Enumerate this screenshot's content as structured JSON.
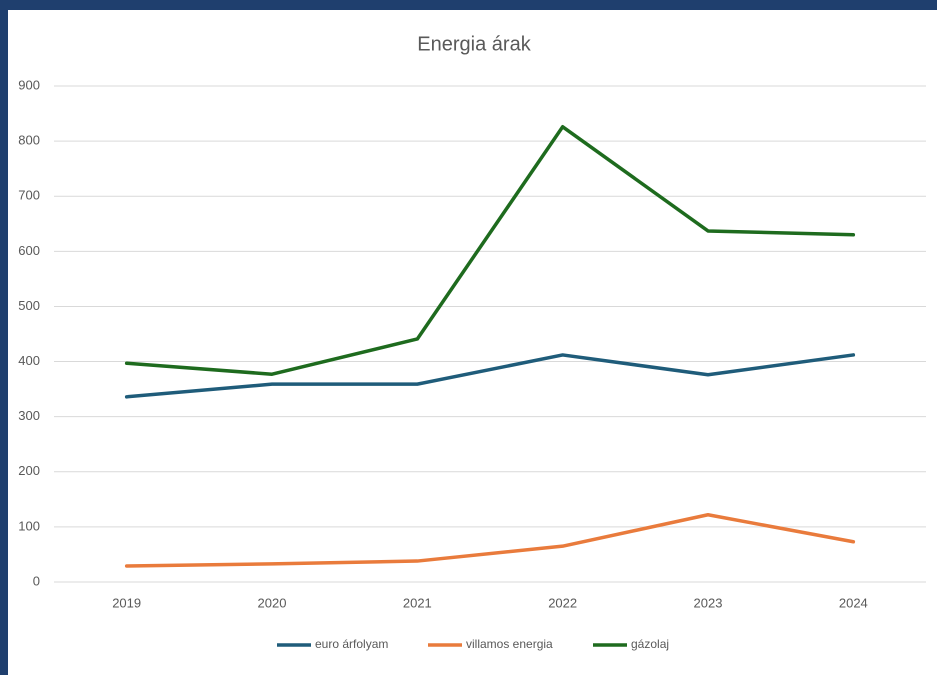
{
  "chart_data": {
    "type": "line",
    "title": "Energia árak",
    "categories": [
      "2019",
      "2020",
      "2021",
      "2022",
      "2023",
      "2024"
    ],
    "series": [
      {
        "name": "euro árfolyam",
        "color": "#1f5c7a",
        "values": [
          336,
          359,
          359,
          412,
          376,
          412
        ]
      },
      {
        "name": "villamos energia",
        "color": "#e97b3c",
        "values": [
          29,
          33,
          38,
          65,
          122,
          73
        ]
      },
      {
        "name": "gázolaj",
        "color": "#1e6b1e",
        "values": [
          397,
          377,
          441,
          826,
          637,
          630
        ]
      }
    ],
    "ylim": [
      0,
      900
    ],
    "yticks": [
      0,
      100,
      200,
      300,
      400,
      500,
      600,
      700,
      800,
      900
    ],
    "grid": true,
    "legend": "bottom"
  }
}
